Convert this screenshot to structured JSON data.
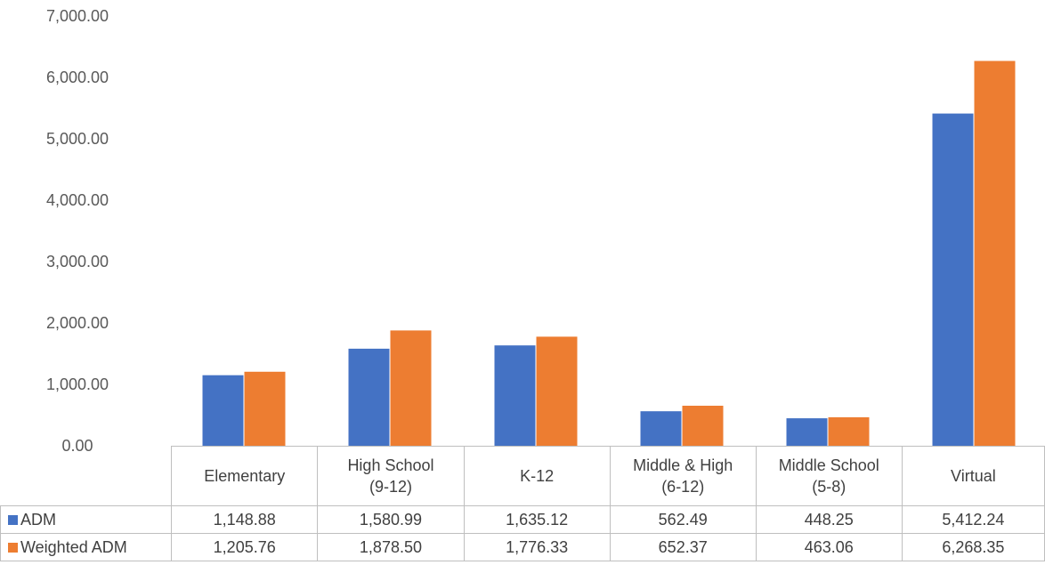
{
  "chart_data": {
    "type": "bar",
    "categories": [
      "Elementary",
      "High School (9-12)",
      "K-12",
      "Middle & High (6-12)",
      "Middle School (5-8)",
      "Virtual"
    ],
    "series": [
      {
        "name": "ADM",
        "values": [
          1148.88,
          1580.99,
          1635.12,
          562.49,
          448.25,
          5412.24
        ],
        "color": "#4472C4",
        "labels": [
          "1,148.88",
          "1,580.99",
          "1,635.12",
          "562.49",
          "448.25",
          "5,412.24"
        ]
      },
      {
        "name": "Weighted ADM",
        "values": [
          1205.76,
          1878.5,
          1776.33,
          652.37,
          463.06,
          6268.35
        ],
        "color": "#ED7D31",
        "labels": [
          "1,205.76",
          "1,878.50",
          "1,776.33",
          "652.37",
          "463.06",
          "6,268.35"
        ]
      }
    ],
    "ylim": [
      0,
      7000
    ],
    "yticks": [
      "0.00",
      "1,000.00",
      "2,000.00",
      "3,000.00",
      "4,000.00",
      "5,000.00",
      "6,000.00",
      "7,000.00"
    ],
    "legend": "data-table",
    "grid": false
  }
}
